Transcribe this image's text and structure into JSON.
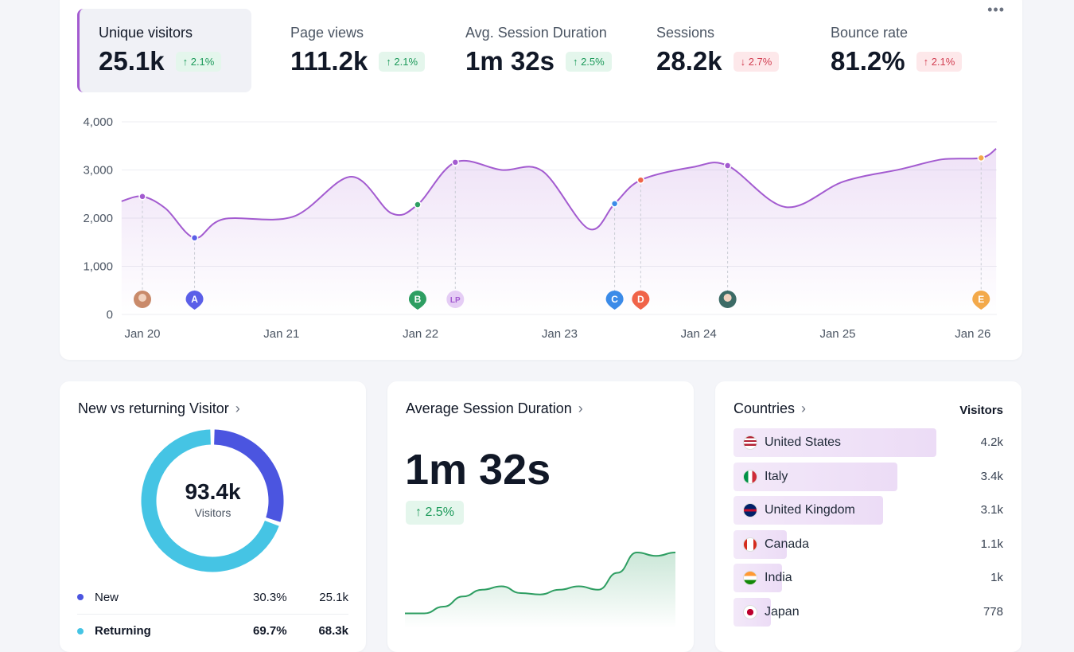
{
  "kpis": [
    {
      "label": "Unique visitors",
      "value": "25.1k",
      "change": "2.1%",
      "trend": "up",
      "active": true
    },
    {
      "label": "Page views",
      "value": "111.2k",
      "change": "2.1%",
      "trend": "up"
    },
    {
      "label": "Avg. Session Duration",
      "value": "1m 32s",
      "change": "2.5%",
      "trend": "up"
    },
    {
      "label": "Sessions",
      "value": "28.2k",
      "change": "2.7%",
      "trend": "down"
    },
    {
      "label": "Bounce rate",
      "value": "81.2%",
      "change": "2.1%",
      "trend": "up",
      "negative": true
    }
  ],
  "more_icon": "more-horizontal-icon",
  "chart_data": {
    "type": "area",
    "ylim": [
      0,
      4000
    ],
    "yticks": [
      "0",
      "1,000",
      "2,000",
      "3,000",
      "4,000"
    ],
    "xticks": [
      "Jan 20",
      "Jan 21",
      "Jan 22",
      "Jan 23",
      "Jan 24",
      "Jan 25",
      "Jan 26"
    ],
    "grid": true,
    "color": "#a35bd0",
    "series": [
      {
        "points": [
          [
            "Jan 19 20:24",
            2350
          ],
          [
            "Jan 20 00:00",
            2450
          ],
          [
            "Jan 20 04:00",
            2200
          ],
          [
            "Jan 20 09:00",
            1590
          ],
          [
            "Jan 20 14:00",
            1980
          ],
          [
            "Jan 21 02:00",
            2030
          ],
          [
            "Jan 21 12:00",
            2860
          ],
          [
            "Jan 21 19:00",
            2100
          ],
          [
            "Jan 21 23:30",
            2280
          ],
          [
            "Jan 22 06:00",
            3160
          ],
          [
            "Jan 22 14:00",
            3000
          ],
          [
            "Jan 22 21:00",
            2980
          ],
          [
            "Jan 23 05:00",
            1780
          ],
          [
            "Jan 23 09:30",
            2300
          ],
          [
            "Jan 23 14:00",
            2790
          ],
          [
            "Jan 23 23:00",
            3060
          ],
          [
            "Jan 24 05:00",
            3090
          ],
          [
            "Jan 24 15:00",
            2230
          ],
          [
            "Jan 25 01:00",
            2760
          ],
          [
            "Jan 25 11:00",
            3020
          ],
          [
            "Jan 25 18:00",
            3220
          ],
          [
            "Jan 26 00:45",
            3250
          ],
          [
            "Jan 26 03:20",
            3440
          ]
        ]
      }
    ],
    "annotations": [
      {
        "x": "Jan 20 00:00",
        "y": 2450,
        "label": "",
        "kind": "avatar",
        "color": "#a35bd0",
        "avatar": "#c98a6a"
      },
      {
        "x": "Jan 20 09:00",
        "y": 1590,
        "label": "A",
        "kind": "pin",
        "color": "#5b5fe8"
      },
      {
        "x": "Jan 21 23:30",
        "y": 2280,
        "label": "B",
        "kind": "pin",
        "color": "#2e9e62"
      },
      {
        "x": "Jan 22 06:00",
        "y": 3160,
        "label": "LP",
        "kind": "circle",
        "color": "#a35bd0",
        "fill": "#e5cdf5"
      },
      {
        "x": "Jan 23 09:30",
        "y": 2300,
        "label": "C",
        "kind": "pin",
        "color": "#3b8be8"
      },
      {
        "x": "Jan 23 14:00",
        "y": 2790,
        "label": "D",
        "kind": "pin",
        "color": "#f06449"
      },
      {
        "x": "Jan 24 05:00",
        "y": 3090,
        "label": "",
        "kind": "avatar",
        "color": "#a35bd0",
        "avatar": "#3c6b66"
      },
      {
        "x": "Jan 26 00:45",
        "y": 3250,
        "label": "E",
        "kind": "pin",
        "color": "#f3a94a"
      }
    ]
  },
  "visitors": {
    "title": "New vs returning Visitor",
    "total": "93.4k",
    "total_label": "Visitors",
    "rows": [
      {
        "label": "New",
        "pct": "30.3%",
        "value": "25.1k",
        "share": 30.3,
        "color": "#4b55e0"
      },
      {
        "label": "Returning",
        "pct": "69.7%",
        "value": "68.3k",
        "share": 69.7,
        "color": "#45c4e4"
      }
    ]
  },
  "session": {
    "title": "Average Session Duration",
    "value": "1m 32s",
    "change": "2.5%",
    "trend": "up",
    "spark": [
      10,
      10,
      20,
      35,
      45,
      50,
      40,
      38,
      45,
      50,
      45,
      70,
      100,
      95,
      100
    ],
    "color": "#2e9e62"
  },
  "countries": {
    "title": "Countries",
    "col": "Visitors",
    "rows": [
      {
        "name": "United States",
        "value": "4.2k",
        "n": 4200,
        "flag": "us"
      },
      {
        "name": "Italy",
        "value": "3.4k",
        "n": 3400,
        "flag": "it"
      },
      {
        "name": "United Kingdom",
        "value": "3.1k",
        "n": 3100,
        "flag": "gb"
      },
      {
        "name": "Canada",
        "value": "1.1k",
        "n": 1100,
        "flag": "ca"
      },
      {
        "name": "India",
        "value": "1k",
        "n": 1000,
        "flag": "in"
      },
      {
        "name": "Japan",
        "value": "778",
        "n": 778,
        "flag": "jp"
      }
    ]
  }
}
